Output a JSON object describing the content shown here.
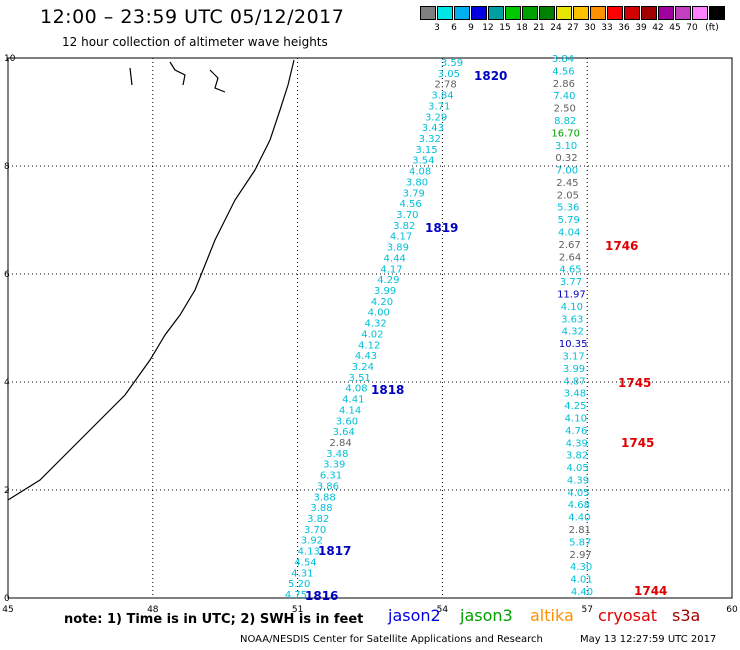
{
  "header": {
    "title": "12:00 – 23:59 UTC 05/12/2017",
    "subtitle": "12 hour collection of altimeter wave heights"
  },
  "color_scale": {
    "unit_label": "(ft)",
    "colors": [
      "#7f7f7f",
      "#00e5e5",
      "#00b0f0",
      "#0000e0",
      "#00a0a0",
      "#00c800",
      "#00a000",
      "#008000",
      "#e6e600",
      "#ffc000",
      "#ff9000",
      "#ff0000",
      "#d00000",
      "#a00000",
      "#a000a0",
      "#c040c0",
      "#ff80ff",
      "#000000"
    ],
    "labels": [
      "3",
      "6",
      "9",
      "12",
      "15",
      "18",
      "21",
      "24",
      "27",
      "30",
      "33",
      "36",
      "39",
      "42",
      "45",
      "70"
    ]
  },
  "axes": {
    "x_ticks": [
      "45",
      "48",
      "51",
      "54",
      "57",
      "60"
    ],
    "y_ticks": [
      "0",
      "2",
      "4",
      "6",
      "8",
      "10"
    ]
  },
  "passes": [
    {
      "id": "1816",
      "color": "#0000c0"
    },
    {
      "id": "1817",
      "color": "#0000c0"
    },
    {
      "id": "1818",
      "color": "#0000c0"
    },
    {
      "id": "1819",
      "color": "#0000c0"
    },
    {
      "id": "1820",
      "color": "#0000c0"
    },
    {
      "id": "1744",
      "color": "#e00000"
    },
    {
      "id": "1745",
      "color": "#e00000"
    },
    {
      "id": "1745b",
      "label": "1745",
      "color": "#e00000"
    },
    {
      "id": "1746",
      "color": "#e00000"
    }
  ],
  "track_left": [
    "3.59",
    "3.05",
    "2.78",
    "3.84",
    "3.71",
    "3.29",
    "3.43",
    "3.32",
    "3.15",
    "3.54",
    "4.08",
    "3.80",
    "3.79",
    "4.56",
    "3.70",
    "3.82",
    "4.17",
    "3.89",
    "4.44",
    "4.17",
    "4.29",
    "3.99",
    "4.20",
    "4.00",
    "4.32",
    "4.02",
    "4.12",
    "4.43",
    "3.24",
    "3.51",
    "4.08",
    "4.41",
    "4.14",
    "3.60",
    "3.64",
    "2.84",
    "3.48",
    "3.39",
    "6.31",
    "3.86",
    "3.88",
    "3.88",
    "3.82",
    "3.70",
    "3.92",
    "4.13",
    "4.54",
    "4.31",
    "5.20",
    "4.75"
  ],
  "track_right": [
    "3.84",
    "4.56",
    "2.86",
    "7.40",
    "2.50",
    "8.82",
    "16.70",
    "3.10",
    "0.32",
    "7.00",
    "2.45",
    "2.05",
    "5.36",
    "5.79",
    "4.04",
    "2.67",
    "2.64",
    "4.65",
    "3.77",
    "11.97",
    "4.10",
    "3.63",
    "4.32",
    "10.35",
    "3.17",
    "3.99",
    "4.87",
    "3.48",
    "4.25",
    "4.10",
    "4.76",
    "4.39",
    "3.82",
    "4.05",
    "4.39",
    "4.05",
    "4.68",
    "4.40",
    "2.81",
    "5.87",
    "2.97",
    "4.30",
    "4.01",
    "4.40"
  ],
  "footer": {
    "note": "note: 1) Time is in UTC; 2) SWH is in feet",
    "satellites": [
      {
        "name": "jason2",
        "color": "#0000e0"
      },
      {
        "name": "jason3",
        "color": "#00a000"
      },
      {
        "name": "altika",
        "color": "#ff9000"
      },
      {
        "name": "cryosat",
        "color": "#e00000"
      },
      {
        "name": "s3a",
        "color": "#a00000"
      }
    ],
    "credit": "NOAA/NESDIS Center for Satellite Applications and Research",
    "timestamp": "May 13 12:27:59 UTC 2017"
  }
}
